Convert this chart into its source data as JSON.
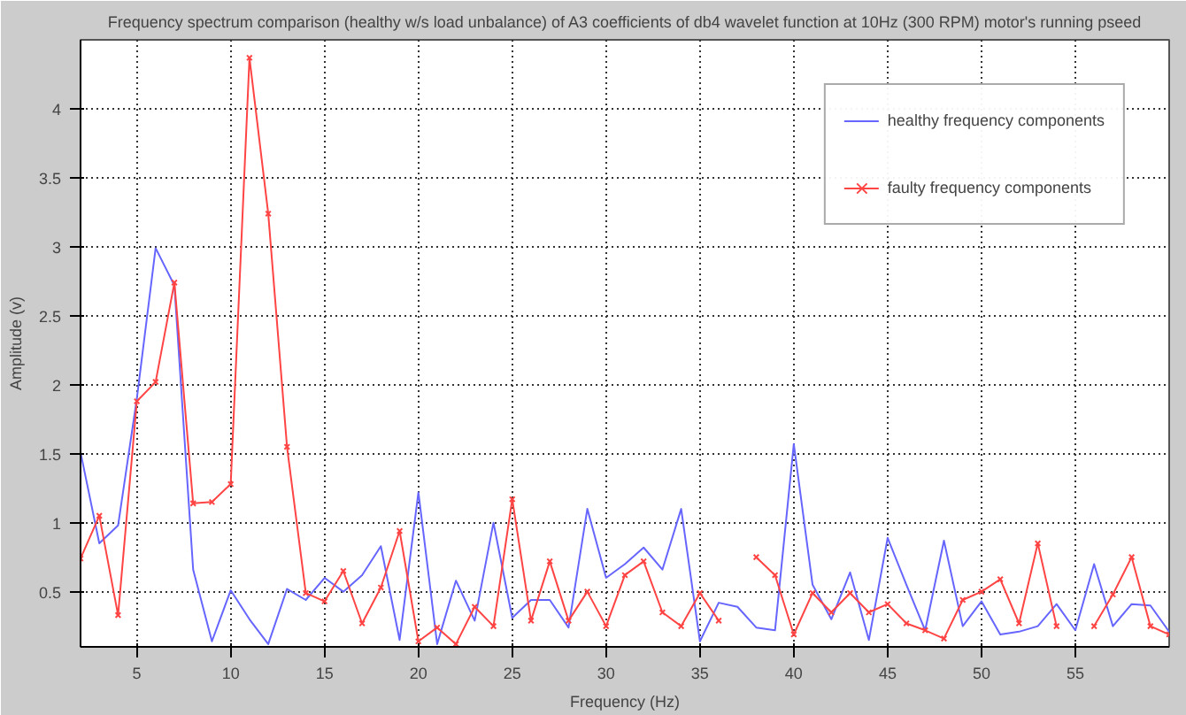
{
  "chart_data": {
    "type": "line",
    "title": "Frequency spectrum comparison (healthy w/s load unbalance) of A3 coefficients of db4 wavelet function at 10Hz (300 RPM) motor's running pseed",
    "xlabel": "Frequency (Hz)",
    "ylabel": "Amplitude (v)",
    "x": [
      2,
      3,
      4,
      5,
      6,
      7,
      8,
      9,
      10,
      11,
      12,
      13,
      14,
      15,
      16,
      17,
      18,
      19,
      20,
      21,
      22,
      23,
      24,
      25,
      26,
      27,
      28,
      29,
      30,
      31,
      32,
      33,
      34,
      35,
      36,
      37,
      38,
      39,
      40,
      41,
      42,
      43,
      44,
      45,
      46,
      47,
      48,
      49,
      50,
      51,
      52,
      53,
      54,
      55,
      56,
      57,
      58,
      59,
      60
    ],
    "series": [
      {
        "name": "healthy frequency components",
        "color": "#6666ff",
        "marker": "none",
        "values": [
          1.51,
          0.85,
          0.98,
          1.9,
          2.99,
          2.72,
          0.66,
          0.14,
          0.51,
          0.3,
          0.12,
          0.52,
          0.44,
          0.6,
          0.5,
          0.62,
          0.83,
          0.15,
          1.22,
          0.12,
          0.58,
          0.29,
          1.0,
          0.31,
          0.44,
          0.44,
          0.24,
          1.1,
          0.6,
          0.7,
          0.82,
          0.66,
          1.1,
          0.14,
          0.42,
          0.39,
          0.24,
          0.22,
          1.57,
          0.55,
          0.3,
          0.64,
          0.15,
          0.89,
          0.55,
          0.22,
          0.87,
          0.25,
          0.43,
          0.19,
          0.21,
          0.25,
          0.41,
          0.22,
          0.7,
          0.25,
          0.41,
          0.4,
          0.21
        ]
      },
      {
        "name": "faulty frequency components",
        "color": "#ff4444",
        "marker": "cross",
        "values": [
          0.74,
          1.05,
          0.33,
          1.88,
          2.02,
          2.74,
          1.14,
          1.15,
          1.28,
          4.37,
          3.24,
          1.55,
          0.49,
          0.43,
          0.65,
          0.27,
          0.53,
          0.94,
          0.14,
          0.24,
          0.12,
          0.39,
          0.25,
          1.17,
          0.29,
          0.72,
          0.29,
          0.5,
          0.25,
          0.62,
          0.72,
          0.35,
          0.25,
          0.49,
          0.29,
          null,
          0.75,
          0.62,
          0.19,
          0.49,
          0.35,
          0.49,
          0.35,
          0.41,
          0.27,
          0.22,
          0.16,
          0.44,
          0.5,
          0.59,
          0.27,
          0.85,
          0.25,
          null,
          0.25,
          0.48,
          0.75,
          0.25,
          0.19
        ]
      }
    ],
    "xlim": [
      2,
      60
    ],
    "ylim": [
      0.1,
      4.5
    ],
    "xticks": [
      5,
      10,
      15,
      20,
      25,
      30,
      35,
      40,
      45,
      50,
      55
    ],
    "yticks": [
      0.5,
      1,
      1.5,
      2,
      2.5,
      3,
      3.5,
      4
    ],
    "grid": true,
    "legend": "top right",
    "line_style": "solid"
  }
}
